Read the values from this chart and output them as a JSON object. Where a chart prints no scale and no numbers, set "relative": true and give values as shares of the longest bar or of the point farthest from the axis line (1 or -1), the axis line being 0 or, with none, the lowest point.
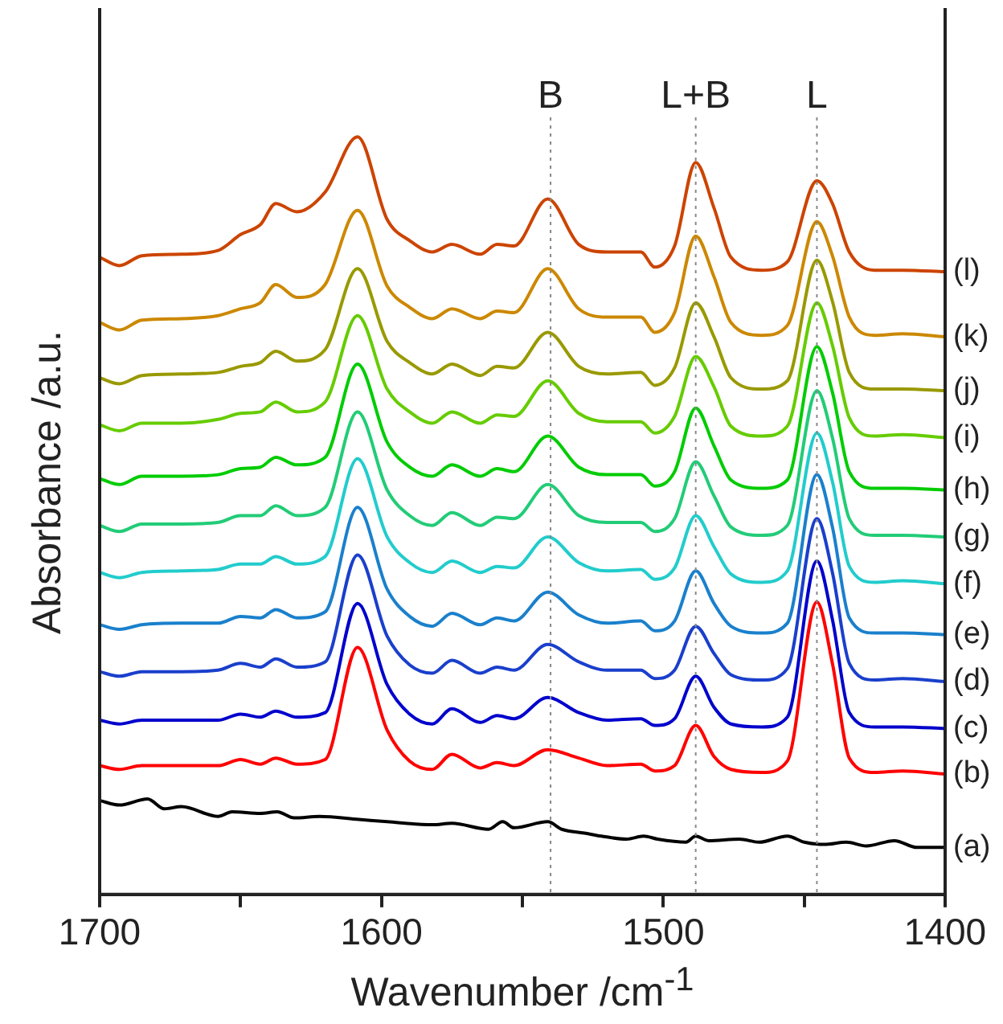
{
  "chart_data": {
    "type": "line",
    "relative": true,
    "xlabel": "Wavenumber /cm$^{-1}$",
    "ylabel": "Absorbance /a.u.",
    "xlim": [
      1700,
      1400
    ],
    "xticks": [
      1700,
      {
        "value": 1650,
        "label": null
      },
      1600,
      {
        "value": 1550,
        "label": null
      },
      1500,
      {
        "value": 1450,
        "label": null
      },
      1400
    ],
    "x": [
      1700,
      1693,
      1685,
      1671,
      1658,
      1650,
      1643,
      1637.5,
      1630,
      1620,
      1608.5,
      1598,
      1590,
      1582,
      1575,
      1565,
      1559,
      1553,
      1541,
      1530,
      1520,
      1508,
      1503,
      1496,
      1488.5,
      1482,
      1476,
      1465,
      1456,
      1445.5,
      1440,
      1434,
      1425,
      1415,
      1400
    ],
    "ref_lines": [
      {
        "axis": "x",
        "value": 1540,
        "label": "B",
        "line_style": "dotted",
        "color": "#888888"
      },
      {
        "axis": "x",
        "value": 1488.5,
        "label": "L+B",
        "line_style": "dotted",
        "color": "#888888"
      },
      {
        "axis": "x",
        "value": 1445.5,
        "label": "L",
        "line_style": "dotted",
        "color": "#888888"
      }
    ],
    "series": [
      {
        "name": "(a)",
        "color": "#000000",
        "x": [
          1700,
          1693,
          1683,
          1677,
          1671,
          1658,
          1653,
          1643,
          1637,
          1631,
          1622,
          1608,
          1598,
          1582,
          1575,
          1562,
          1557,
          1553,
          1541,
          1536,
          1528,
          1522,
          1513,
          1507,
          1502,
          1492,
          1488.5,
          1484,
          1473,
          1466,
          1456,
          1450,
          1443,
          1435,
          1428,
          1418,
          1410,
          1400
        ],
        "values": [
          0.124,
          0.118,
          0.126,
          0.113,
          0.116,
          0.103,
          0.109,
          0.107,
          0.109,
          0.101,
          0.103,
          0.099,
          0.096,
          0.092,
          0.094,
          0.086,
          0.096,
          0.088,
          0.096,
          0.086,
          0.081,
          0.077,
          0.073,
          0.077,
          0.073,
          0.069,
          0.077,
          0.071,
          0.073,
          0.069,
          0.077,
          0.069,
          0.066,
          0.069,
          0.064,
          0.071,
          0.062,
          0.062
        ]
      },
      {
        "name": "(b)",
        "color": "#ff0000",
        "values": [
          0.17,
          0.165,
          0.17,
          0.17,
          0.17,
          0.178,
          0.172,
          0.18,
          0.172,
          0.178,
          0.326,
          0.217,
          0.176,
          0.165,
          0.185,
          0.167,
          0.174,
          0.17,
          0.191,
          0.18,
          0.17,
          0.172,
          0.163,
          0.17,
          0.223,
          0.182,
          0.165,
          0.161,
          0.176,
          0.386,
          0.305,
          0.18,
          0.161,
          0.163,
          0.159
        ]
      },
      {
        "name": "(c)",
        "color": "#0000cc",
        "values": [
          0.23,
          0.225,
          0.23,
          0.23,
          0.23,
          0.238,
          0.234,
          0.242,
          0.234,
          0.24,
          0.384,
          0.277,
          0.238,
          0.225,
          0.245,
          0.227,
          0.236,
          0.232,
          0.26,
          0.24,
          0.23,
          0.232,
          0.223,
          0.232,
          0.288,
          0.247,
          0.225,
          0.221,
          0.234,
          0.44,
          0.363,
          0.24,
          0.221,
          0.221,
          0.219
        ]
      },
      {
        "name": "(d)",
        "color": "#1a3fcc",
        "values": [
          0.294,
          0.288,
          0.294,
          0.294,
          0.296,
          0.305,
          0.3,
          0.311,
          0.3,
          0.307,
          0.448,
          0.341,
          0.303,
          0.292,
          0.309,
          0.292,
          0.3,
          0.296,
          0.33,
          0.307,
          0.296,
          0.296,
          0.285,
          0.296,
          0.354,
          0.318,
          0.29,
          0.283,
          0.298,
          0.496,
          0.425,
          0.305,
          0.283,
          0.285,
          0.281
        ]
      },
      {
        "name": "(e)",
        "color": "#1a80cc",
        "values": [
          0.356,
          0.35,
          0.356,
          0.358,
          0.358,
          0.367,
          0.365,
          0.376,
          0.365,
          0.373,
          0.511,
          0.403,
          0.367,
          0.354,
          0.371,
          0.356,
          0.365,
          0.361,
          0.399,
          0.369,
          0.358,
          0.361,
          0.348,
          0.361,
          0.427,
          0.384,
          0.354,
          0.345,
          0.358,
          0.554,
          0.485,
          0.365,
          0.345,
          0.345,
          0.343
        ]
      },
      {
        "name": "(f)",
        "color": "#22cccc",
        "values": [
          0.425,
          0.418,
          0.425,
          0.427,
          0.429,
          0.436,
          0.436,
          0.446,
          0.436,
          0.446,
          0.575,
          0.472,
          0.438,
          0.425,
          0.44,
          0.425,
          0.433,
          0.431,
          0.472,
          0.438,
          0.427,
          0.429,
          0.416,
          0.431,
          0.5,
          0.459,
          0.423,
          0.412,
          0.427,
          0.609,
          0.545,
          0.433,
          0.412,
          0.414,
          0.41
        ]
      },
      {
        "name": "(g)",
        "color": "#22cc77",
        "values": [
          0.487,
          0.479,
          0.489,
          0.489,
          0.491,
          0.5,
          0.5,
          0.513,
          0.5,
          0.511,
          0.637,
          0.534,
          0.5,
          0.487,
          0.504,
          0.487,
          0.498,
          0.496,
          0.541,
          0.5,
          0.491,
          0.491,
          0.479,
          0.496,
          0.571,
          0.526,
          0.485,
          0.474,
          0.487,
          0.665,
          0.603,
          0.496,
          0.474,
          0.474,
          0.472
        ]
      },
      {
        "name": "(h)",
        "color": "#00cc00",
        "values": [
          0.549,
          0.541,
          0.552,
          0.552,
          0.554,
          0.562,
          0.564,
          0.577,
          0.567,
          0.577,
          0.7,
          0.597,
          0.564,
          0.552,
          0.567,
          0.552,
          0.562,
          0.558,
          0.605,
          0.564,
          0.554,
          0.554,
          0.539,
          0.558,
          0.642,
          0.592,
          0.547,
          0.536,
          0.547,
          0.723,
          0.663,
          0.558,
          0.536,
          0.536,
          0.534
        ]
      },
      {
        "name": "(i)",
        "color": "#66cc00",
        "values": [
          0.62,
          0.612,
          0.622,
          0.622,
          0.627,
          0.635,
          0.637,
          0.65,
          0.637,
          0.65,
          0.764,
          0.667,
          0.637,
          0.622,
          0.637,
          0.622,
          0.633,
          0.631,
          0.678,
          0.635,
          0.624,
          0.624,
          0.609,
          0.631,
          0.71,
          0.67,
          0.618,
          0.605,
          0.618,
          0.781,
          0.725,
          0.629,
          0.605,
          0.607,
          0.603
        ]
      },
      {
        "name": "(j)",
        "color": "#999900",
        "values": [
          0.682,
          0.674,
          0.685,
          0.687,
          0.689,
          0.697,
          0.702,
          0.717,
          0.704,
          0.719,
          0.826,
          0.73,
          0.702,
          0.687,
          0.7,
          0.685,
          0.697,
          0.695,
          0.742,
          0.697,
          0.687,
          0.689,
          0.672,
          0.695,
          0.781,
          0.736,
          0.682,
          0.667,
          0.678,
          0.837,
          0.783,
          0.689,
          0.667,
          0.667,
          0.665
        ]
      },
      {
        "name": "(k)",
        "color": "#cc8800",
        "values": [
          0.755,
          0.745,
          0.758,
          0.76,
          0.764,
          0.773,
          0.781,
          0.805,
          0.788,
          0.805,
          0.903,
          0.803,
          0.775,
          0.76,
          0.773,
          0.76,
          0.77,
          0.768,
          0.826,
          0.773,
          0.762,
          0.762,
          0.742,
          0.768,
          0.869,
          0.815,
          0.755,
          0.738,
          0.751,
          0.888,
          0.843,
          0.762,
          0.738,
          0.74,
          0.736
        ]
      },
      {
        "name": "(l)",
        "color": "#cc4400",
        "values": [
          0.841,
          0.83,
          0.843,
          0.845,
          0.85,
          0.871,
          0.884,
          0.912,
          0.901,
          0.927,
          1,
          0.891,
          0.863,
          0.848,
          0.858,
          0.845,
          0.858,
          0.856,
          0.918,
          0.858,
          0.848,
          0.848,
          0.828,
          0.856,
          0.966,
          0.906,
          0.841,
          0.824,
          0.835,
          0.942,
          0.912,
          0.848,
          0.824,
          0.824,
          0.822
        ]
      }
    ]
  }
}
